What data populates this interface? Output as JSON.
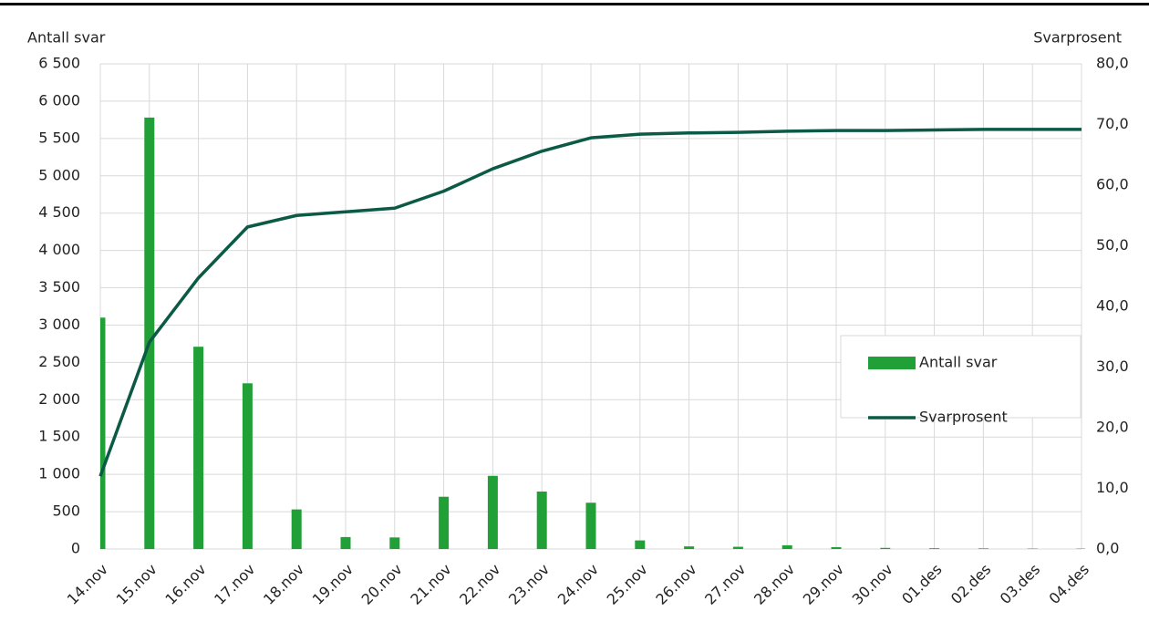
{
  "chart_data": {
    "type": "bar-line",
    "y_label": "Antall svar",
    "y2_label": "Svarprosent",
    "categories": [
      "14.nov",
      "15.nov",
      "16.nov",
      "17.nov",
      "18.nov",
      "19.nov",
      "20.nov",
      "21.nov",
      "22.nov",
      "23.nov",
      "24.nov",
      "25.nov",
      "26.nov",
      "27.nov",
      "28.nov",
      "29.nov",
      "30.nov",
      "01.des",
      "02.des",
      "03.des",
      "04.des"
    ],
    "series": [
      {
        "name": "Antall svar",
        "type": "bar",
        "color": "#22a038",
        "values": [
          3100,
          5780,
          2710,
          2220,
          530,
          160,
          155,
          700,
          980,
          770,
          620,
          115,
          35,
          30,
          50,
          25,
          15,
          10,
          8,
          5,
          5
        ]
      },
      {
        "name": "Svarprosent",
        "type": "line",
        "axis": "y2",
        "color": "#0b5a45",
        "values": [
          12.0,
          34.1,
          44.7,
          53.1,
          55.0,
          55.6,
          56.2,
          59.0,
          62.7,
          65.6,
          67.8,
          68.4,
          68.6,
          68.7,
          68.9,
          69.0,
          69.0,
          69.1,
          69.2,
          69.2,
          69.2
        ]
      }
    ],
    "ylim": [
      0,
      6500
    ],
    "yticks": [
      0,
      500,
      {
        "value": 1000,
        "label": "1 000"
      },
      {
        "value": 1500,
        "label": "1 500"
      },
      {
        "value": 2000,
        "label": "2 000"
      },
      {
        "value": 2500,
        "label": "2 500"
      },
      {
        "value": 3000,
        "label": "3 000"
      },
      {
        "value": 3500,
        "label": "3 500"
      },
      {
        "value": 4000,
        "label": "4 000"
      },
      {
        "value": 4500,
        "label": "4 500"
      },
      {
        "value": 5000,
        "label": "5 000"
      },
      {
        "value": 5500,
        "label": "5 500"
      },
      {
        "value": 6000,
        "label": "6 000"
      },
      {
        "value": 6500,
        "label": "6 500"
      }
    ],
    "y2lim": [
      0,
      80
    ],
    "y2ticks": [
      {
        "value": 0,
        "label": "0,0"
      },
      {
        "value": 10,
        "label": "10,0"
      },
      {
        "value": 20,
        "label": "20,0"
      },
      {
        "value": 30,
        "label": "30,0"
      },
      {
        "value": 40,
        "label": "40,0"
      },
      {
        "value": 50,
        "label": "50,0"
      },
      {
        "value": 60,
        "label": "60,0"
      },
      {
        "value": 70,
        "label": "70,0"
      },
      {
        "value": 80,
        "label": "80,0"
      }
    ],
    "grid": true,
    "legend": "right"
  }
}
